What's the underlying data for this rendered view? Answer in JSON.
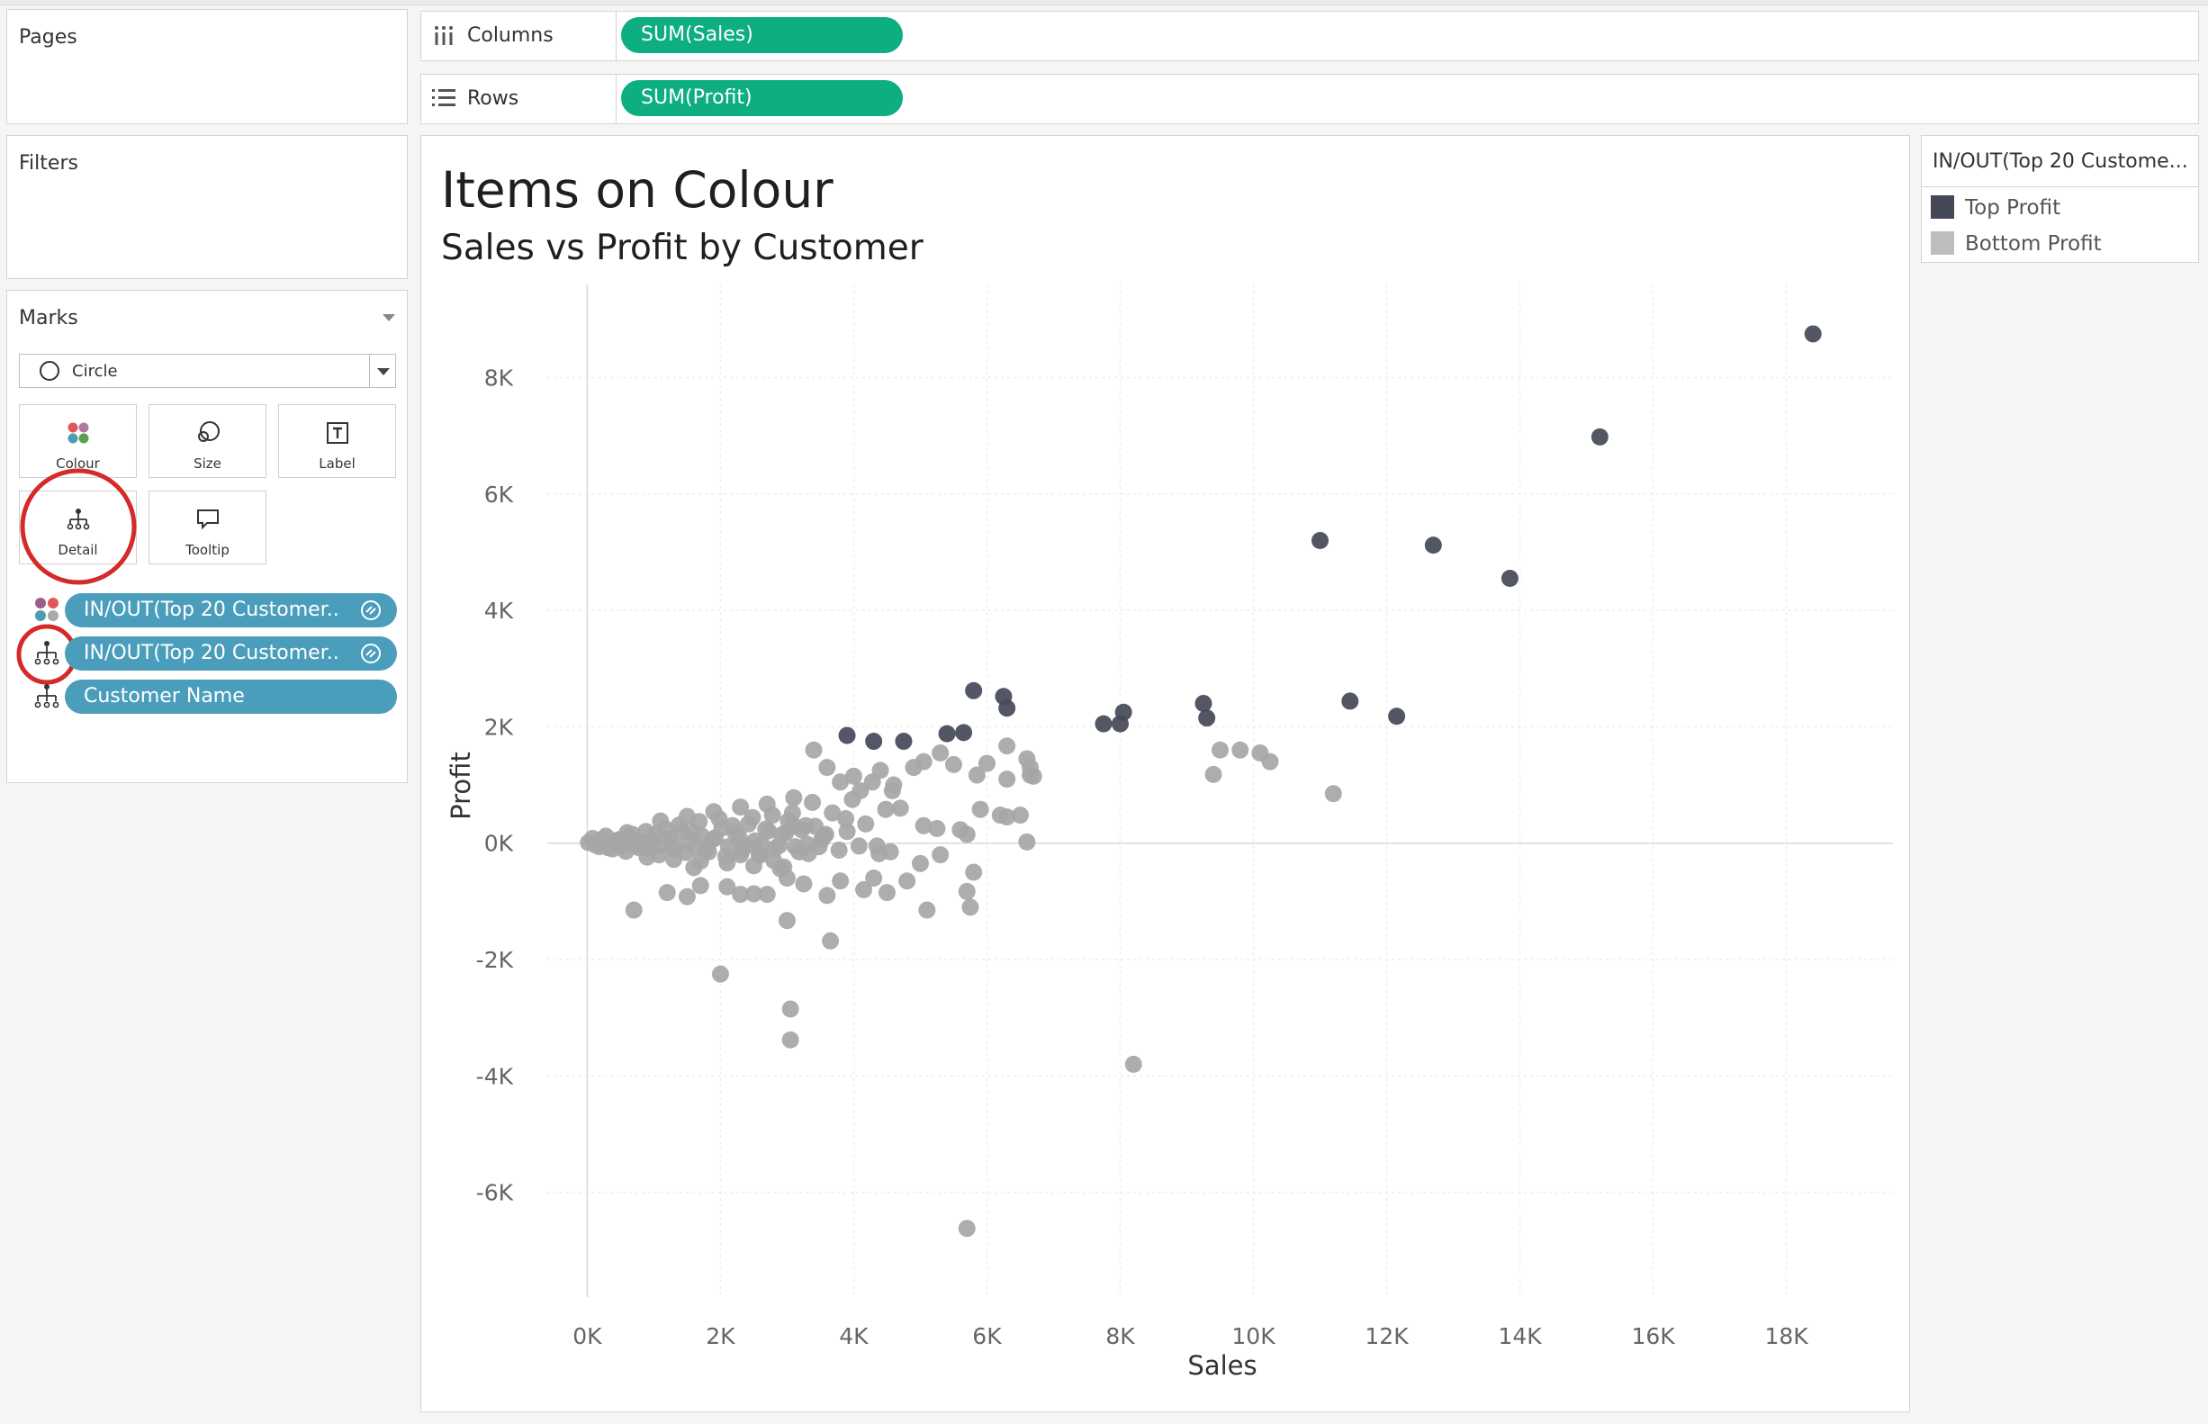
{
  "pages": {
    "label": "Pages"
  },
  "filters": {
    "label": "Filters"
  },
  "marks": {
    "label": "Marks",
    "mark_type": "Circle",
    "buttons": {
      "colour": "Colour",
      "size": "Size",
      "label": "Label",
      "detail": "Detail",
      "tooltip": "Tooltip"
    },
    "fields": [
      {
        "name": "IN/OUT(Top 20 Customer..",
        "encoding": "colour"
      },
      {
        "name": "IN/OUT(Top 20 Customer..",
        "encoding": "detail"
      },
      {
        "name": "Customer Name",
        "encoding": "detail"
      }
    ]
  },
  "shelves": {
    "columns": {
      "label": "Columns",
      "pill": "SUM(Sales)"
    },
    "rows": {
      "label": "Rows",
      "pill": "SUM(Profit)"
    }
  },
  "legend": {
    "title": "IN/OUT(Top 20 Custome...",
    "items": [
      {
        "label": "Top Profit",
        "color": "#444857"
      },
      {
        "label": "Bottom Profit",
        "color": "#bdbdbd"
      }
    ]
  },
  "colors": {
    "accent_green": "#0eae83",
    "pill_blue": "#4a9ebb",
    "highlight_red": "#d42a2a"
  },
  "chart_data": {
    "type": "scatter",
    "title": "Items on Colour",
    "subtitle": "Sales vs Profit by Customer",
    "xlabel": "Sales",
    "ylabel": "Profit",
    "xlim": [
      -600,
      19600
    ],
    "ylim": [
      -7800,
      9600
    ],
    "x_ticks": [
      0,
      2000,
      4000,
      6000,
      8000,
      10000,
      12000,
      14000,
      16000,
      18000
    ],
    "x_tick_labels": [
      "0K",
      "2K",
      "4K",
      "6K",
      "8K",
      "10K",
      "12K",
      "14K",
      "16K",
      "18K"
    ],
    "y_ticks": [
      -6000,
      -4000,
      -2000,
      0,
      2000,
      4000,
      6000,
      8000
    ],
    "y_tick_labels": [
      "-6K",
      "-4K",
      "-2K",
      "0K",
      "2K",
      "4K",
      "6K",
      "8K"
    ],
    "grid": true,
    "series": [
      {
        "name": "Top Profit",
        "color": "#444857",
        "points": [
          [
            18400,
            8750
          ],
          [
            15200,
            6980
          ],
          [
            11000,
            5200
          ],
          [
            12700,
            5120
          ],
          [
            13850,
            4550
          ],
          [
            11450,
            2440
          ],
          [
            12150,
            2180
          ],
          [
            9250,
            2400
          ],
          [
            9300,
            2150
          ],
          [
            8050,
            2250
          ],
          [
            8000,
            2050
          ],
          [
            7750,
            2050
          ],
          [
            5800,
            2620
          ],
          [
            6250,
            2520
          ],
          [
            6300,
            2320
          ],
          [
            5650,
            1900
          ],
          [
            5400,
            1880
          ],
          [
            3900,
            1850
          ],
          [
            4300,
            1750
          ],
          [
            4750,
            1750
          ]
        ]
      },
      {
        "name": "Bottom Profit",
        "color": "#a6a6a6",
        "points": [
          [
            18,
            10
          ],
          [
            120,
            -30
          ],
          [
            220,
            60
          ],
          [
            320,
            -80
          ],
          [
            420,
            40
          ],
          [
            520,
            -50
          ],
          [
            620,
            90
          ],
          [
            720,
            -20
          ],
          [
            820,
            30
          ],
          [
            920,
            -90
          ],
          [
            1020,
            150
          ],
          [
            1120,
            -40
          ],
          [
            1220,
            80
          ],
          [
            1320,
            -110
          ],
          [
            1420,
            200
          ],
          [
            1520,
            50
          ],
          [
            1620,
            -70
          ],
          [
            1720,
            120
          ],
          [
            1820,
            -150
          ],
          [
            1920,
            90
          ],
          [
            2020,
            260
          ],
          [
            2120,
            -60
          ],
          [
            2220,
            180
          ],
          [
            2320,
            -130
          ],
          [
            2420,
            330
          ],
          [
            2520,
            40
          ],
          [
            2620,
            -20
          ],
          [
            2720,
            210
          ],
          [
            2820,
            -90
          ],
          [
            2920,
            140
          ],
          [
            3020,
            380
          ],
          [
            3120,
            -60
          ],
          [
            3220,
            230
          ],
          [
            3320,
            -180
          ],
          [
            3420,
            290
          ],
          [
            3520,
            60
          ],
          [
            80,
            80
          ],
          [
            180,
            -60
          ],
          [
            280,
            120
          ],
          [
            380,
            -100
          ],
          [
            480,
            60
          ],
          [
            580,
            -140
          ],
          [
            680,
            150
          ],
          [
            780,
            -80
          ],
          [
            880,
            200
          ],
          [
            980,
            40
          ],
          [
            1080,
            -200
          ],
          [
            1180,
            240
          ],
          [
            1280,
            -20
          ],
          [
            1380,
            310
          ],
          [
            1480,
            -160
          ],
          [
            1580,
            180
          ],
          [
            1680,
            370
          ],
          [
            1780,
            -100
          ],
          [
            1880,
            60
          ],
          [
            1980,
            420
          ],
          [
            2080,
            -230
          ],
          [
            2180,
            300
          ],
          [
            2280,
            100
          ],
          [
            2380,
            -50
          ],
          [
            2480,
            440
          ],
          [
            2580,
            -210
          ],
          [
            2680,
            240
          ],
          [
            2780,
            480
          ],
          [
            2880,
            -40
          ],
          [
            2980,
            180
          ],
          [
            3080,
            520
          ],
          [
            3180,
            -150
          ],
          [
            3280,
            300
          ],
          [
            3380,
            700
          ],
          [
            3480,
            -60
          ],
          [
            3580,
            150
          ],
          [
            3680,
            520
          ],
          [
            3780,
            -120
          ],
          [
            3880,
            420
          ],
          [
            3980,
            750
          ],
          [
            4080,
            -50
          ],
          [
            4180,
            330
          ],
          [
            4280,
            1050
          ],
          [
            4380,
            -180
          ],
          [
            4480,
            580
          ],
          [
            4580,
            900
          ],
          [
            600,
            180
          ],
          [
            900,
            -240
          ],
          [
            1100,
            380
          ],
          [
            1300,
            -280
          ],
          [
            1500,
            460
          ],
          [
            1700,
            -310
          ],
          [
            1900,
            540
          ],
          [
            2100,
            -340
          ],
          [
            2300,
            620
          ],
          [
            2500,
            -390
          ],
          [
            2700,
            670
          ],
          [
            2900,
            -440
          ],
          [
            3100,
            780
          ],
          [
            1200,
            -850
          ],
          [
            1700,
            -730
          ],
          [
            1500,
            -920
          ],
          [
            2300,
            -880
          ],
          [
            2700,
            -880
          ],
          [
            3000,
            -1330
          ],
          [
            3650,
            -1680
          ],
          [
            3600,
            -900
          ],
          [
            3800,
            -650
          ],
          [
            4150,
            -800
          ],
          [
            4300,
            -600
          ],
          [
            4500,
            -850
          ],
          [
            4800,
            -650
          ],
          [
            5100,
            -1150
          ],
          [
            5700,
            -830
          ],
          [
            5750,
            -1100
          ],
          [
            5800,
            -500
          ],
          [
            4350,
            -50
          ],
          [
            4550,
            -150
          ],
          [
            5000,
            -350
          ],
          [
            5300,
            -200
          ],
          [
            5600,
            230
          ],
          [
            5900,
            580
          ],
          [
            6200,
            480
          ],
          [
            6500,
            480
          ],
          [
            6700,
            1150
          ],
          [
            6300,
            1670
          ],
          [
            6600,
            1450
          ],
          [
            6650,
            1300
          ],
          [
            5300,
            1550
          ],
          [
            6000,
            1370
          ],
          [
            5850,
            1170
          ],
          [
            6300,
            1100
          ],
          [
            6650,
            1170
          ],
          [
            5500,
            1350
          ],
          [
            5050,
            1400
          ],
          [
            4900,
            1300
          ],
          [
            4600,
            1000
          ],
          [
            4400,
            1250
          ],
          [
            3400,
            1600
          ],
          [
            3800,
            1050
          ],
          [
            4000,
            1150
          ],
          [
            4100,
            900
          ],
          [
            3600,
            1300
          ],
          [
            4700,
            600
          ],
          [
            5050,
            300
          ],
          [
            5250,
            250
          ],
          [
            5700,
            150
          ],
          [
            6300,
            450
          ],
          [
            6600,
            20
          ],
          [
            3100,
            300
          ],
          [
            3300,
            -20
          ],
          [
            3550,
            120
          ],
          [
            3900,
            200
          ],
          [
            2950,
            -410
          ],
          [
            3250,
            -700
          ],
          [
            2000,
            -2250
          ],
          [
            3050,
            -2850
          ],
          [
            3050,
            -3380
          ],
          [
            8200,
            -3800
          ],
          [
            5700,
            -6620
          ],
          [
            10250,
            1400
          ],
          [
            9800,
            1600
          ],
          [
            10100,
            1550
          ],
          [
            9400,
            1180
          ],
          [
            9500,
            1600
          ],
          [
            11200,
            850
          ],
          [
            700,
            -1150
          ],
          [
            2100,
            -750
          ],
          [
            2500,
            -870
          ],
          [
            2300,
            -200
          ],
          [
            1600,
            -420
          ],
          [
            2600,
            -200
          ],
          [
            3000,
            -600
          ],
          [
            2800,
            -300
          ]
        ]
      }
    ]
  }
}
